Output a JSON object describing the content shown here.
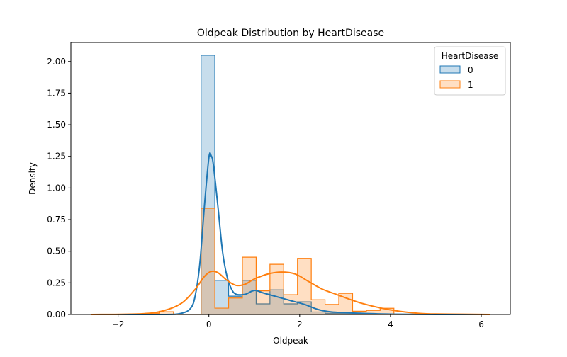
{
  "chart_data": {
    "type": "histogram",
    "title": "Oldpeak Distribution by HeartDisease",
    "xlabel": "Oldpeak",
    "ylabel": "Density",
    "xlim": [
      -3.04,
      6.64
    ],
    "ylim": [
      0,
      2.15
    ],
    "xticks": [
      -2,
      0,
      2,
      4,
      6
    ],
    "xtick_labels": [
      "−2",
      "0",
      "2",
      "4",
      "6"
    ],
    "yticks": [
      0,
      0.25,
      0.5,
      0.75,
      1.0,
      1.25,
      1.5,
      1.75,
      2.0
    ],
    "ytick_labels": [
      "0.00",
      "0.25",
      "0.50",
      "0.75",
      "1.00",
      "1.25",
      "1.50",
      "1.75",
      "2.00"
    ],
    "grid": false,
    "bin_range": [
      -2.6,
      6.2
    ],
    "bin_count": 29,
    "legend": {
      "title": "HeartDisease",
      "placement": "top-right"
    },
    "series": [
      {
        "name": "0",
        "color": "#1f77b4",
        "hist_density": [
          0,
          0,
          0,
          0,
          0,
          0,
          0,
          0,
          2.05,
          0.27,
          0.145,
          0.27,
          0.084,
          0.195,
          0.084,
          0.1,
          0.02,
          0.01,
          0.01,
          0.005,
          0,
          0,
          0,
          0,
          0,
          0,
          0,
          0,
          0
        ],
        "kde": {
          "x": [
            -2.6,
            -1.0,
            -0.6,
            -0.4,
            -0.3,
            -0.2,
            -0.1,
            0,
            0.05,
            0.1,
            0.2,
            0.3,
            0.4,
            0.5,
            0.6,
            0.8,
            1.0,
            1.2,
            1.5,
            1.8,
            2.1,
            2.4,
            2.7,
            3.0,
            3.3,
            4.0,
            5.0,
            6.2
          ],
          "y": [
            0,
            0,
            0.01,
            0.05,
            0.15,
            0.4,
            0.85,
            1.24,
            1.255,
            1.18,
            0.85,
            0.5,
            0.3,
            0.2,
            0.16,
            0.16,
            0.19,
            0.17,
            0.14,
            0.11,
            0.08,
            0.04,
            0.02,
            0.015,
            0.01,
            0.003,
            0,
            0
          ]
        }
      },
      {
        "name": "1",
        "color": "#ff7f0e",
        "hist_density": [
          0,
          0,
          0,
          0,
          0.01,
          0.022,
          0,
          0,
          0.84,
          0.05,
          0.13,
          0.453,
          0.187,
          0.397,
          0.156,
          0.444,
          0.116,
          0.079,
          0.167,
          0.026,
          0.032,
          0.049,
          0,
          0,
          0,
          0,
          0,
          0,
          0
        ],
        "kde": {
          "x": [
            -2.6,
            -1.5,
            -1.0,
            -0.6,
            -0.3,
            -0.1,
            0.05,
            0.2,
            0.4,
            0.6,
            0.8,
            1.0,
            1.3,
            1.6,
            1.9,
            2.2,
            2.5,
            2.8,
            3.1,
            3.4,
            3.8,
            4.2,
            4.6,
            5.0,
            6.2
          ],
          "y": [
            0,
            0.005,
            0.03,
            0.09,
            0.2,
            0.3,
            0.34,
            0.33,
            0.27,
            0.23,
            0.24,
            0.28,
            0.32,
            0.335,
            0.32,
            0.26,
            0.2,
            0.16,
            0.12,
            0.085,
            0.05,
            0.025,
            0.01,
            0.004,
            0
          ]
        }
      }
    ]
  }
}
